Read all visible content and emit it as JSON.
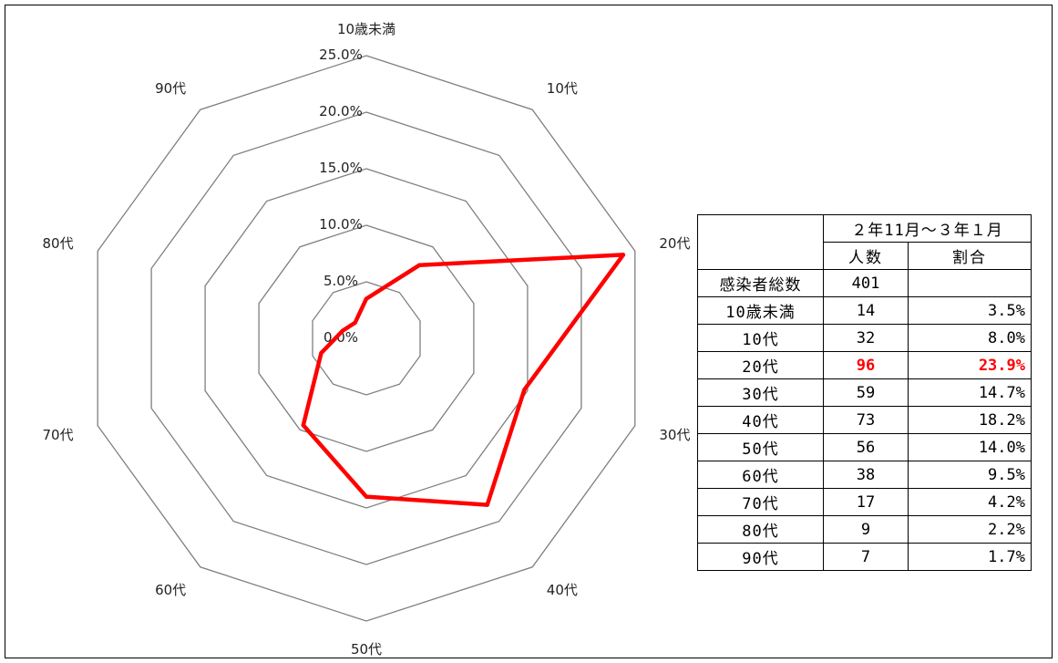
{
  "chart_data": {
    "type": "radar",
    "categories": [
      "10歳未満",
      "10代",
      "20代",
      "30代",
      "40代",
      "50代",
      "60代",
      "70代",
      "80代",
      "90代"
    ],
    "series": [
      {
        "values": [
          3.5,
          8.0,
          23.9,
          14.7,
          18.2,
          14.0,
          9.5,
          4.2,
          2.2,
          1.7
        ],
        "color": "#ff0000"
      }
    ],
    "r_ticks": [
      "0.0%",
      "5.0%",
      "10.0%",
      "15.0%",
      "20.0%",
      "25.0%"
    ],
    "r_range": [
      0,
      25
    ],
    "grid_color": "#7f7f7f",
    "grid": true,
    "legend": "none"
  },
  "table": {
    "period": "２年11月～３年１月",
    "col_count": "人数",
    "col_ratio": "割合",
    "total_label": "感染者総数",
    "total_count": "401",
    "rows": [
      {
        "label": "10歳未満",
        "count": "14",
        "ratio": "3.5%"
      },
      {
        "label": "10代",
        "count": "32",
        "ratio": "8.0%"
      },
      {
        "label": "20代",
        "count": "96",
        "ratio": "23.9%",
        "highlight": true
      },
      {
        "label": "30代",
        "count": "59",
        "ratio": "14.7%"
      },
      {
        "label": "40代",
        "count": "73",
        "ratio": "18.2%"
      },
      {
        "label": "50代",
        "count": "56",
        "ratio": "14.0%"
      },
      {
        "label": "60代",
        "count": "38",
        "ratio": "9.5%"
      },
      {
        "label": "70代",
        "count": "17",
        "ratio": "4.2%"
      },
      {
        "label": "80代",
        "count": "9",
        "ratio": "2.2%"
      },
      {
        "label": "90代",
        "count": "7",
        "ratio": "1.7%"
      }
    ],
    "highlight_color": "#ff0000"
  }
}
